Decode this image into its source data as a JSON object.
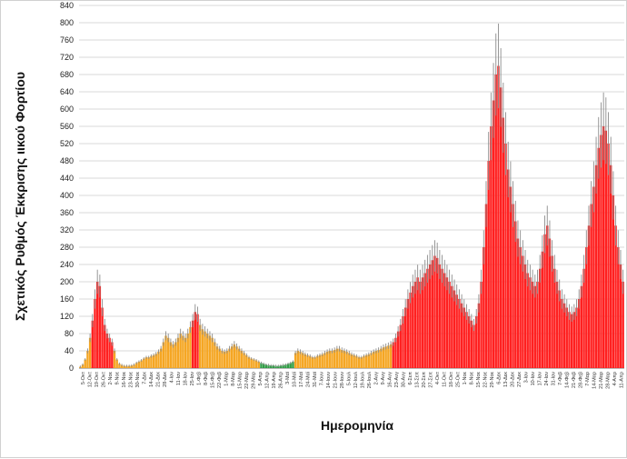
{
  "chart_data": {
    "type": "bar",
    "ylabel": "Σχετικός Ρυθμός Έκκρισης ιικού Φορτίου",
    "xlabel": "Ημερομηνία",
    "ylim": [
      0,
      840
    ],
    "yticks": [
      0,
      40,
      80,
      120,
      160,
      200,
      240,
      280,
      320,
      360,
      400,
      440,
      480,
      520,
      560,
      600,
      640,
      680,
      720,
      760,
      800,
      840
    ],
    "grid": "horizontal",
    "colors": {
      "red": "#ff2020",
      "orange": "#f5a623",
      "green": "#2e9e44",
      "error_bar": "#8c8c8c",
      "grid": "#d9d9d9"
    },
    "x_tick_labels": [
      "5-Οκτ",
      "12-Οκτ",
      "19-Οκτ",
      "26-Οκτ",
      "2-Νοε",
      "9-Νοε",
      "16-Νοε",
      "23-Νοε",
      "30-Νοε",
      "7-Δεκ",
      "14-Δεκ",
      "21-Δεκ",
      "28-Δεκ",
      "4-Ιαν",
      "11-Ιαν",
      "18-Ιαν",
      "25-Ιαν",
      "1-Φεβ",
      "8-Φεβ",
      "15-Φεβ",
      "22-Φεβ",
      "1-Μαρ",
      "8-Μαρ",
      "15-Μαρ",
      "22-Μαρ",
      "29-Μαρ",
      "5-Απρ",
      "12-Απρ",
      "19-Απρ",
      "26-Απρ",
      "3-Μαϊ",
      "10-Μαϊ",
      "17-Μαϊ",
      "24-Μαϊ",
      "31-Μαϊ",
      "7-Ιουν",
      "14-Ιουν",
      "21-Ιουν",
      "28-Ιουν",
      "5-Ιουλ",
      "12-Ιουλ",
      "19-Ιουλ",
      "26-Ιουλ",
      "2-Αυγ",
      "9-Αυγ",
      "16-Αυγ",
      "23-Αυγ",
      "30-Αυγ",
      "6-Σεπ",
      "13-Σεπ",
      "20-Σεπ",
      "27-Σεπ",
      "4-Οκτ",
      "11-Οκτ",
      "18-Οκτ",
      "25-Οκτ",
      "1-Νοε",
      "8-Νοε",
      "15-Νοε",
      "22-Νοε",
      "29-Νοε",
      "6-Δεκ",
      "13-Δεκ",
      "20-Δεκ",
      "27-Δεκ",
      "3-Ιαν",
      "10-Ιαν",
      "17-Ιαν",
      "24-Ιαν",
      "31-Ιαν",
      "7-Φεβ",
      "14-Φεβ",
      "21-Φεβ",
      "28-Φεβ",
      "7-Μαρ",
      "14-Μαρ",
      "21-Μαρ",
      "28-Μαρ",
      "4-Απρ",
      "11-Απρ"
    ],
    "series": [
      {
        "color": "orange",
        "values": [
          3,
          8,
          20,
          40,
          70
        ]
      },
      {
        "color": "red",
        "values": [
          110,
          160,
          200,
          190,
          140,
          100,
          80,
          70,
          60
        ]
      },
      {
        "color": "orange",
        "values": [
          40,
          20,
          10,
          7,
          5,
          5,
          5,
          6,
          8,
          12,
          15,
          18,
          22,
          25,
          25,
          28,
          30,
          33,
          38,
          45,
          60,
          75,
          70,
          60,
          55,
          60,
          70,
          80,
          75,
          70,
          80,
          95
        ]
      },
      {
        "color": "red",
        "values": [
          110,
          130,
          125
        ]
      },
      {
        "color": "orange",
        "values": [
          100,
          90,
          85,
          80,
          75,
          70,
          60,
          50,
          45,
          40,
          38,
          40,
          45,
          50,
          55,
          50,
          45,
          40,
          35,
          30,
          25,
          22,
          20,
          18,
          15
        ]
      },
      {
        "color": "green",
        "values": [
          12,
          10,
          8,
          7,
          6,
          6,
          5,
          5,
          6,
          7,
          8,
          10,
          12,
          15
        ]
      },
      {
        "color": "orange",
        "values": [
          35,
          40,
          38,
          35,
          32,
          30,
          28,
          25,
          25,
          28,
          30,
          32,
          35,
          38,
          40,
          40,
          42,
          45,
          45,
          42,
          40,
          38,
          35,
          32,
          30,
          28,
          25,
          25,
          28,
          30,
          32,
          35,
          38,
          40,
          42,
          45,
          48,
          50,
          52,
          55
        ]
      },
      {
        "color": "red",
        "values": [
          60,
          70,
          85,
          100,
          120,
          140,
          160,
          175,
          190,
          200,
          210,
          200,
          210,
          220,
          230,
          240,
          250,
          260,
          255,
          240,
          230,
          220,
          210,
          200,
          190,
          180,
          170,
          160,
          150,
          140,
          130,
          120,
          110,
          100,
          120,
          150,
          200,
          280,
          380,
          480,
          560,
          620,
          680,
          700,
          650,
          580,
          520,
          460,
          420,
          380,
          340,
          300,
          280,
          260,
          240,
          220,
          210,
          200,
          190,
          200,
          230,
          270,
          310,
          330,
          300,
          260,
          230,
          200,
          180,
          160,
          150,
          140,
          130,
          125,
          130,
          140,
          160,
          190,
          230,
          280,
          330,
          380,
          420,
          470,
          510,
          540,
          560,
          550,
          520,
          470,
          400,
          330,
          280,
          240,
          200
        ]
      }
    ]
  }
}
